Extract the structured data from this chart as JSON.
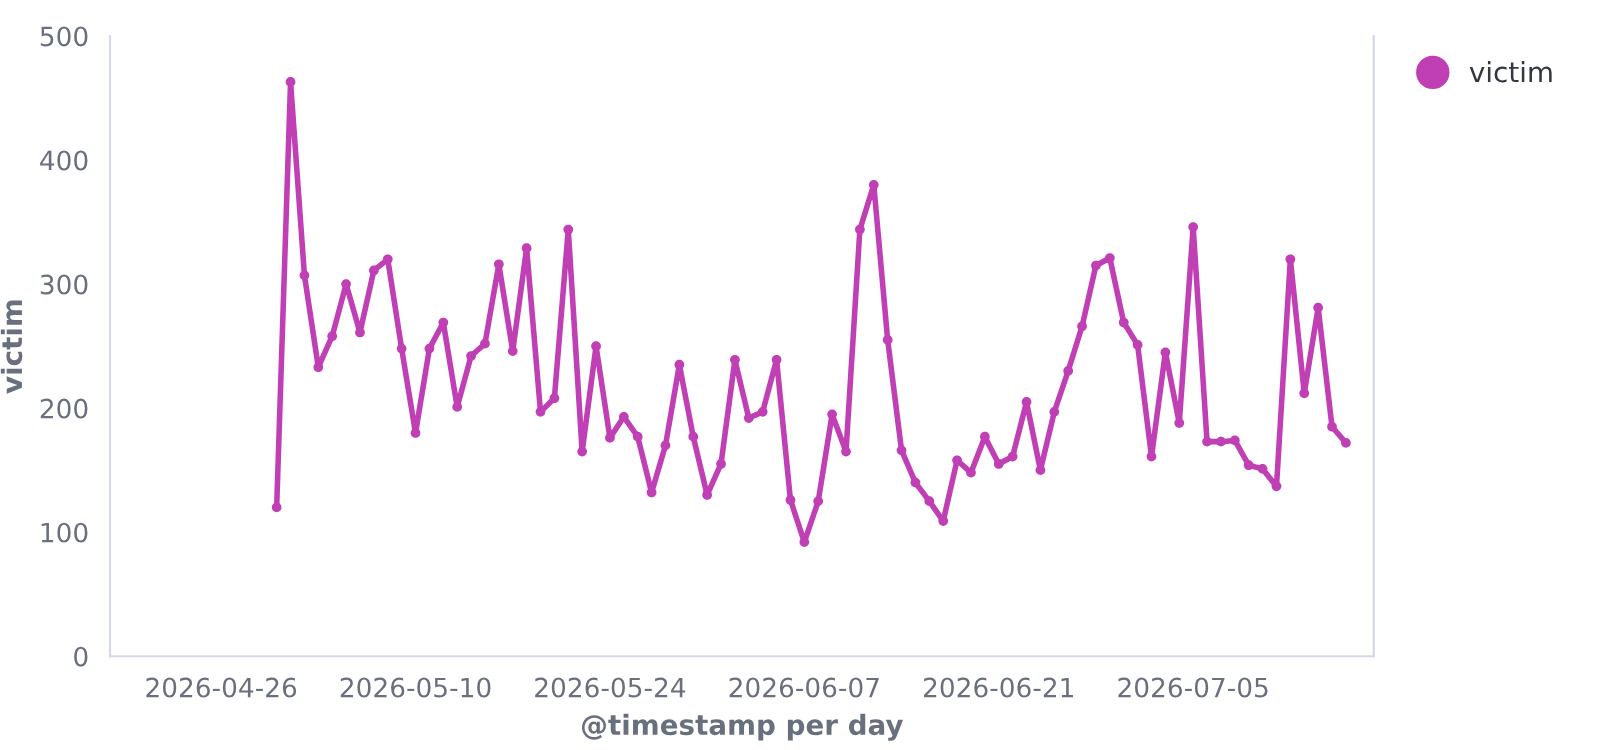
{
  "chart_data": {
    "type": "line",
    "xlabel": "@timestamp per day",
    "ylabel": "victim",
    "x": [
      "2026-04-30",
      "2026-05-01",
      "2026-05-02",
      "2026-05-03",
      "2026-05-04",
      "2026-05-05",
      "2026-05-06",
      "2026-05-07",
      "2026-05-08",
      "2026-05-09",
      "2026-05-10",
      "2026-05-11",
      "2026-05-12",
      "2026-05-13",
      "2026-05-14",
      "2026-05-15",
      "2026-05-16",
      "2026-05-17",
      "2026-05-18",
      "2026-05-19",
      "2026-05-20",
      "2026-05-21",
      "2026-05-22",
      "2026-05-23",
      "2026-05-24",
      "2026-05-25",
      "2026-05-26",
      "2026-05-27",
      "2026-05-28",
      "2026-05-29",
      "2026-05-30",
      "2026-05-31",
      "2026-06-01",
      "2026-06-02",
      "2026-06-03",
      "2026-06-04",
      "2026-06-05",
      "2026-06-06",
      "2026-06-07",
      "2026-06-08",
      "2026-06-09",
      "2026-06-10",
      "2026-06-11",
      "2026-06-12",
      "2026-06-13",
      "2026-06-14",
      "2026-06-15",
      "2026-06-16",
      "2026-06-17",
      "2026-06-18",
      "2026-06-19",
      "2026-06-20",
      "2026-06-21",
      "2026-06-22",
      "2026-06-23",
      "2026-06-24",
      "2026-06-25",
      "2026-06-26",
      "2026-06-27",
      "2026-06-28",
      "2026-06-29",
      "2026-06-30",
      "2026-07-01",
      "2026-07-02",
      "2026-07-03",
      "2026-07-04",
      "2026-07-05",
      "2026-07-06",
      "2026-07-07",
      "2026-07-08",
      "2026-07-09",
      "2026-07-10",
      "2026-07-11",
      "2026-07-12",
      "2026-07-13",
      "2026-07-14",
      "2026-07-15",
      "2026-07-16"
    ],
    "series": [
      {
        "name": "victim",
        "color": "#c03fb4",
        "values": [
          120,
          463,
          307,
          233,
          258,
          300,
          261,
          311,
          320,
          248,
          180,
          248,
          269,
          201,
          242,
          252,
          316,
          246,
          329,
          197,
          208,
          344,
          165,
          250,
          176,
          193,
          177,
          132,
          170,
          235,
          177,
          130,
          155,
          239,
          192,
          197,
          239,
          126,
          92,
          125,
          195,
          165,
          344,
          380,
          255,
          166,
          140,
          125,
          109,
          158,
          148,
          177,
          155,
          161,
          205,
          150,
          197,
          230,
          266,
          315,
          321,
          269,
          251,
          161,
          245,
          188,
          346,
          173,
          173,
          174,
          154,
          151,
          137,
          320,
          212,
          281,
          185,
          172
        ]
      }
    ],
    "xlim": [
      "2026-04-18",
      "2026-07-18"
    ],
    "xticks": [
      "2026-04-26",
      "2026-05-10",
      "2026-05-24",
      "2026-06-07",
      "2026-06-21",
      "2026-07-05"
    ],
    "ylim": [
      0,
      500
    ],
    "yticks": [
      0,
      100,
      200,
      300,
      400,
      500
    ],
    "grid": false,
    "legend": "top right",
    "marker": "circle",
    "line_style": "solid"
  }
}
